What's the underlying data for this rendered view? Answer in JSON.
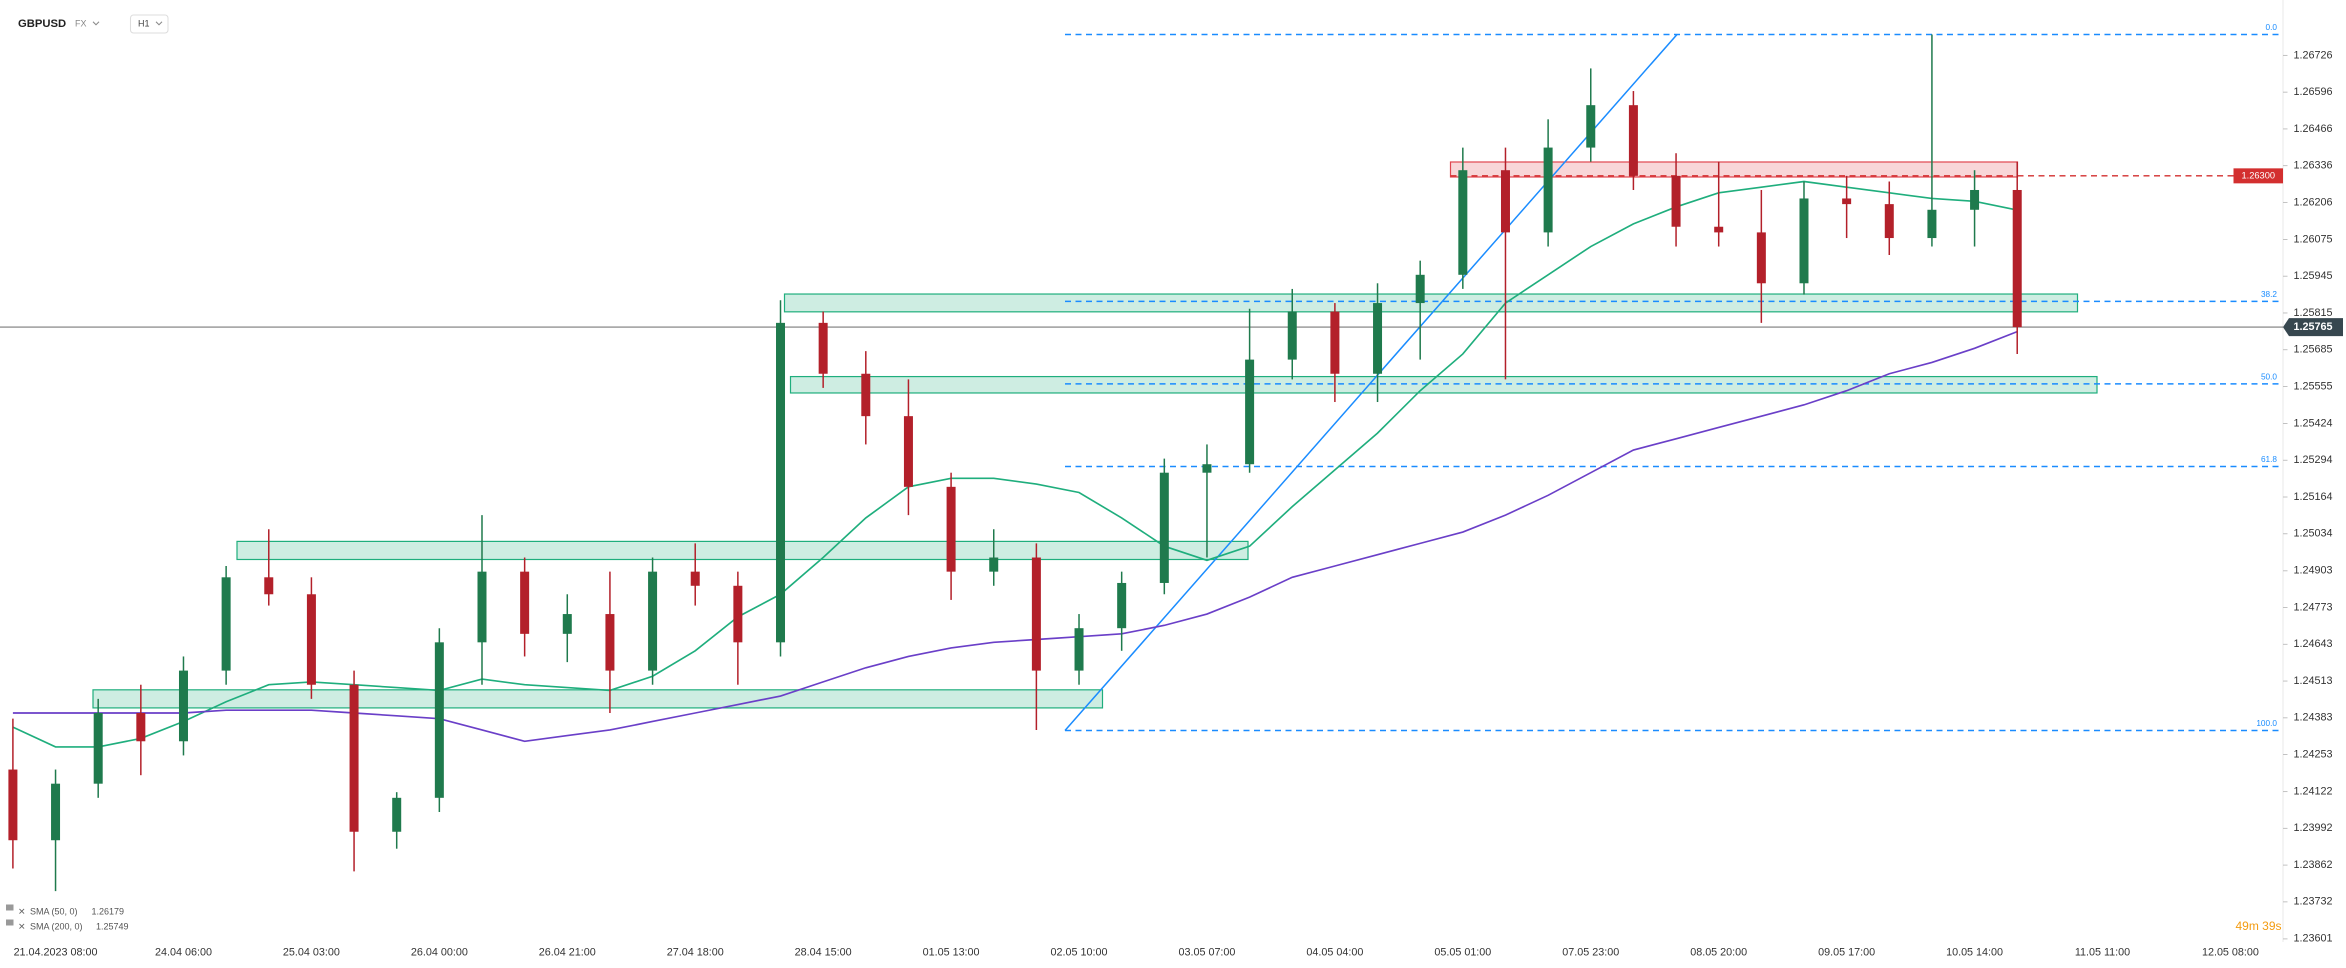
{
  "chart_data": {
    "type": "candlestick",
    "title": "GBPUSD",
    "market": "FX",
    "interval": "H1",
    "up_color": "#1f7a4d",
    "down_color": "#b3202a",
    "categories": [
      null,
      "21.04.2023 08:00",
      null,
      null,
      "24.04 06:00",
      null,
      null,
      "25.04 03:00",
      null,
      null,
      "26.04 00:00",
      null,
      null,
      "26.04 21:00",
      null,
      null,
      "27.04 18:00",
      null,
      null,
      "28.04 15:00",
      null,
      null,
      "01.05 13:00",
      null,
      null,
      "02.05 10:00",
      null,
      null,
      "03.05 07:00",
      null,
      null,
      "04.05 04:00",
      null,
      null,
      "05.05 01:00",
      null,
      null,
      "07.05 23:00",
      null,
      null,
      "08.05 20:00",
      null,
      null,
      "09.05 17:00",
      null,
      null,
      "10.05 14:00",
      null,
      null,
      "11.05 11:00",
      null,
      null,
      "12.05 08:00"
    ],
    "open": [
      1.242,
      1.2395,
      1.2415,
      1.244,
      1.243,
      1.2455,
      1.2488,
      1.2482,
      1.245,
      1.2398,
      1.241,
      1.2465,
      1.249,
      1.2468,
      1.2475,
      1.2455,
      1.249,
      1.2485,
      1.2465,
      1.2578,
      1.256,
      1.2545,
      1.252,
      1.249,
      1.2495,
      1.2455,
      1.247,
      1.2486,
      1.2525,
      1.2528,
      1.2565,
      1.2582,
      1.256,
      1.2585,
      1.2595,
      1.2632,
      1.261,
      1.264,
      1.2655,
      1.263,
      1.2612,
      1.261,
      1.2592,
      1.2622,
      1.262,
      1.2608,
      1.2618,
      1.2625,
      null,
      null,
      null,
      null,
      null
    ],
    "high": [
      1.2438,
      1.242,
      1.2445,
      1.245,
      1.246,
      1.2492,
      1.2505,
      1.2488,
      1.2455,
      1.2412,
      1.247,
      1.251,
      1.2495,
      1.2482,
      1.249,
      1.2495,
      1.25,
      1.249,
      1.2586,
      1.2582,
      1.2568,
      1.2558,
      1.2525,
      1.2505,
      1.25,
      1.2475,
      1.249,
      1.253,
      1.2535,
      1.2583,
      1.259,
      1.2585,
      1.2592,
      1.26,
      1.264,
      1.264,
      1.265,
      1.2668,
      1.266,
      1.2638,
      1.2635,
      1.2625,
      1.2628,
      1.263,
      1.2628,
      1.268,
      1.2632,
      1.2635,
      null,
      null,
      null,
      null,
      null
    ],
    "low": [
      1.2385,
      1.2377,
      1.241,
      1.2418,
      1.2425,
      1.245,
      1.2478,
      1.2445,
      1.2384,
      1.2392,
      1.2405,
      1.245,
      1.246,
      1.2458,
      1.244,
      1.245,
      1.2478,
      1.245,
      1.246,
      1.2555,
      1.2535,
      1.251,
      1.248,
      1.2485,
      1.2434,
      1.245,
      1.2462,
      1.2482,
      1.2495,
      1.2525,
      1.2558,
      1.255,
      1.255,
      1.2565,
      1.259,
      1.2558,
      1.2605,
      1.2635,
      1.2625,
      1.2605,
      1.2605,
      1.2578,
      1.2588,
      1.2608,
      1.2602,
      1.2605,
      1.2605,
      1.2567,
      null,
      null,
      null,
      null,
      null
    ],
    "close": [
      1.2395,
      1.2415,
      1.244,
      1.243,
      1.2455,
      1.2488,
      1.2482,
      1.245,
      1.2398,
      1.241,
      1.2465,
      1.249,
      1.2468,
      1.2475,
      1.2455,
      1.249,
      1.2485,
      1.2465,
      1.2578,
      1.256,
      1.2545,
      1.252,
      1.249,
      1.2495,
      1.2455,
      1.247,
      1.2486,
      1.2525,
      1.2528,
      1.2565,
      1.2582,
      1.256,
      1.2585,
      1.2595,
      1.2632,
      1.261,
      1.264,
      1.2655,
      1.263,
      1.2612,
      1.261,
      1.2592,
      1.2622,
      1.262,
      1.2608,
      1.2618,
      1.2625,
      1.25765,
      null,
      null,
      null,
      null,
      null
    ],
    "indicators": [
      {
        "name": "SMA (50, 0)",
        "value_label": "1.26179",
        "color": "#1fae7d",
        "values": [
          1.2435,
          1.2428,
          1.2428,
          1.2431,
          1.2437,
          1.2444,
          1.245,
          1.2451,
          1.245,
          1.2449,
          1.2448,
          1.2452,
          1.245,
          1.2449,
          1.2448,
          1.2453,
          1.2462,
          1.2474,
          1.2482,
          1.2495,
          1.2509,
          1.252,
          1.2523,
          1.2523,
          1.2521,
          1.2518,
          1.2509,
          1.2499,
          1.2494,
          1.2499,
          1.2513,
          1.2526,
          1.2539,
          1.2554,
          1.2567,
          1.2585,
          1.2595,
          1.2605,
          1.2613,
          1.2619,
          1.2624,
          1.2626,
          1.2628,
          1.2626,
          1.2624,
          1.2622,
          1.2621,
          1.26179,
          null,
          null,
          null,
          null,
          null
        ]
      },
      {
        "name": "SMA (200, 0)",
        "value_label": "1.25749",
        "color": "#6a3fc8",
        "values": [
          1.244,
          1.244,
          1.244,
          1.244,
          1.244,
          1.2441,
          1.2441,
          1.2441,
          1.244,
          1.2439,
          1.2438,
          1.2434,
          1.243,
          1.2432,
          1.2434,
          1.2437,
          1.244,
          1.2443,
          1.2446,
          1.2451,
          1.2456,
          1.246,
          1.2463,
          1.2465,
          1.2466,
          1.2467,
          1.2468,
          1.2471,
          1.2475,
          1.2481,
          1.2488,
          1.2492,
          1.2496,
          1.25,
          1.2504,
          1.251,
          1.2517,
          1.2525,
          1.2533,
          1.2537,
          1.2541,
          1.2545,
          1.2549,
          1.2554,
          1.256,
          1.2564,
          1.2569,
          1.25749,
          null,
          null,
          null,
          null,
          null
        ]
      }
    ],
    "zones": [
      {
        "low": 1.24943,
        "high": 1.25007,
        "color": "#1fae7d"
      },
      {
        "low": 1.24418,
        "high": 1.24482,
        "color": "#1fae7d"
      },
      {
        "low": 1.25819,
        "high": 1.25882,
        "color": "#1fae7d"
      },
      {
        "low": 1.25532,
        "high": 1.2559,
        "color": "#1fae7d"
      },
      {
        "low": 1.26296,
        "high": 1.26349,
        "color": "#e0454f"
      }
    ],
    "fib_levels": [
      {
        "label": "0.0",
        "price": 1.268
      },
      {
        "label": "38.2",
        "price": 1.25856
      },
      {
        "label": "50.0",
        "price": 1.25564
      },
      {
        "label": "61.8",
        "price": 1.25272
      },
      {
        "label": "100.0",
        "price": 1.24338
      }
    ],
    "fib_color": "#1a8cff",
    "trendline": {
      "values": [
        1.24338,
        1.268
      ],
      "color": "#1a8cff"
    },
    "resistance": {
      "value": 1.263,
      "label": "1.26300",
      "color": "#d32f2f"
    },
    "last_price": {
      "value": 1.25765,
      "label": "1.25765",
      "color": "#37474f"
    },
    "countdown": "49m 39s",
    "ylim": [
      1.2359,
      1.26922
    ],
    "yticks": [
      1.26726,
      1.26596,
      1.26466,
      1.26336,
      1.26206,
      1.26075,
      1.25945,
      1.25815,
      1.25685,
      1.25555,
      1.25424,
      1.25294,
      1.25164,
      1.25034,
      1.24903,
      1.24773,
      1.24643,
      1.24513,
      1.24383,
      1.24253,
      1.24122,
      1.23992,
      1.23862,
      1.23732,
      1.23601
    ]
  }
}
